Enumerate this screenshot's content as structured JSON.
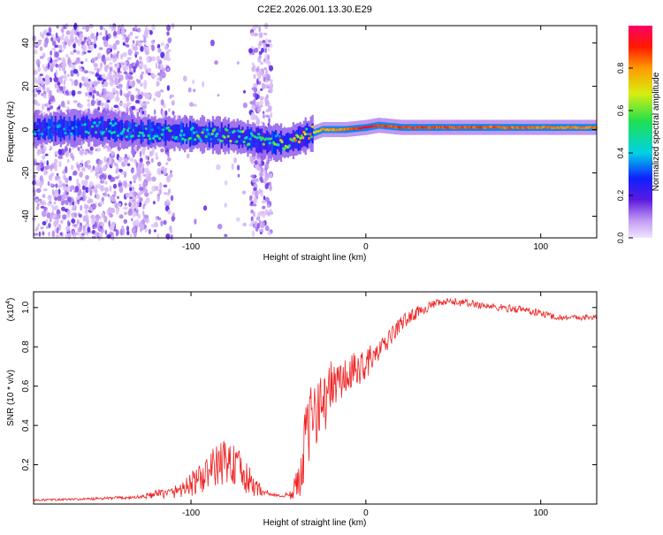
{
  "title": "C2E2.2026.001.13.30.E29",
  "colors": {
    "snr_line": "#ee2222",
    "spec_dark": "#4400dd",
    "spec_light": "#cdb3f0"
  },
  "chart_data": [
    {
      "type": "heatmap",
      "title": "C2E2.2026.001.13.30.E29",
      "xlabel": "Height of straight line (km)",
      "ylabel": "Frequency (Hz)",
      "xlim": [
        -190,
        132
      ],
      "ylim": [
        -50,
        48
      ],
      "xticks": [
        -100,
        0,
        100
      ],
      "yticks": [
        -40,
        -20,
        0,
        20,
        40
      ],
      "colorbar": {
        "label": "Normalized spectral amplitude",
        "ticks": [
          "0.0",
          "0.2",
          "0.4",
          "0.6",
          "0.8"
        ],
        "range": [
          0,
          1
        ]
      },
      "center_frequency_track": [
        {
          "x": -190,
          "f": 0,
          "amp": 0.35
        },
        {
          "x": -160,
          "f": 1,
          "amp": 0.4
        },
        {
          "x": -130,
          "f": -1,
          "amp": 0.45
        },
        {
          "x": -100,
          "f": -2,
          "amp": 0.5
        },
        {
          "x": -75,
          "f": -3,
          "amp": 0.55
        },
        {
          "x": -55,
          "f": -6,
          "amp": 0.5
        },
        {
          "x": -45,
          "f": -6,
          "amp": 0.75
        },
        {
          "x": -35,
          "f": -3,
          "amp": 0.65
        },
        {
          "x": -25,
          "f": 0,
          "amp": 0.8
        },
        {
          "x": -12,
          "f": 0,
          "amp": 0.85
        },
        {
          "x": 0,
          "f": 1,
          "amp": 0.97
        },
        {
          "x": 7,
          "f": 2,
          "amp": 0.92
        },
        {
          "x": 20,
          "f": 1,
          "amp": 0.9
        },
        {
          "x": 60,
          "f": 1,
          "amp": 0.88
        },
        {
          "x": 100,
          "f": 1,
          "amp": 0.86
        },
        {
          "x": 132,
          "f": 1,
          "amp": 0.85
        }
      ]
    },
    {
      "type": "line",
      "xlabel": "Height of straight line (km)",
      "ylabel": "SNR (10 * v/v)",
      "y_multiplier": "(x10",
      "y_multiplier_exp": "4",
      "y_multiplier_close": ")",
      "xlim": [
        -190,
        132
      ],
      "ylim": [
        0,
        1.08
      ],
      "xticks": [
        -100,
        0,
        100
      ],
      "yticks": [
        0.2,
        0.4,
        0.6,
        0.8,
        1.0
      ],
      "ytick_labels": [
        "0.2",
        "0.4",
        "0.6",
        "0.8",
        "1.0"
      ],
      "series": [
        {
          "name": "SNR",
          "x": [
            -190,
            -160,
            -130,
            -120,
            -110,
            -95,
            -88,
            -80,
            -75,
            -70,
            -62,
            -55,
            -48,
            -42,
            -38,
            -35,
            -30,
            -27,
            -24,
            -20,
            -15,
            -10,
            -5,
            0,
            5,
            10,
            20,
            30,
            40,
            50,
            60,
            75,
            90,
            100,
            110,
            120,
            132
          ],
          "y": [
            0.02,
            0.025,
            0.035,
            0.05,
            0.06,
            0.12,
            0.18,
            0.22,
            0.2,
            0.14,
            0.08,
            0.05,
            0.04,
            0.05,
            0.15,
            0.3,
            0.45,
            0.55,
            0.5,
            0.6,
            0.62,
            0.65,
            0.68,
            0.72,
            0.75,
            0.8,
            0.92,
            0.98,
            1.02,
            1.03,
            1.02,
            1.0,
            0.99,
            0.97,
            0.95,
            0.95,
            0.95
          ],
          "noise": [
            0.005,
            0.006,
            0.01,
            0.02,
            0.03,
            0.08,
            0.1,
            0.12,
            0.12,
            0.1,
            0.04,
            0.01,
            0.005,
            0.03,
            0.12,
            0.18,
            0.2,
            0.2,
            0.15,
            0.13,
            0.12,
            0.1,
            0.1,
            0.08,
            0.07,
            0.05,
            0.04,
            0.03,
            0.02,
            0.02,
            0.02,
            0.02,
            0.02,
            0.02,
            0.015,
            0.015,
            0.015
          ]
        }
      ]
    }
  ]
}
